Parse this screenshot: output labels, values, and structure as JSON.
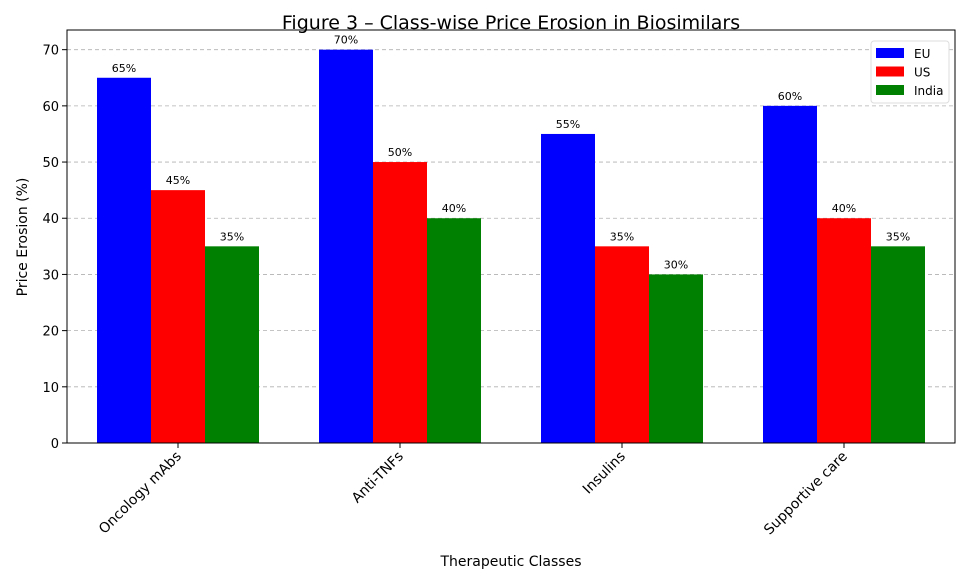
{
  "chart_data": {
    "type": "bar",
    "title": "Figure 3 – Class-wise Price Erosion in Biosimilars",
    "xlabel": "Therapeutic Classes",
    "ylabel": "Price Erosion (%)",
    "categories": [
      "Oncology mAbs",
      "Anti-TNFs",
      "Insulins",
      "Supportive care"
    ],
    "series": [
      {
        "name": "EU",
        "color": "#0000ff",
        "values": [
          65,
          70,
          55,
          60
        ],
        "labels": [
          "65%",
          "70%",
          "55%",
          "60%"
        ]
      },
      {
        "name": "US",
        "color": "#ff0000",
        "values": [
          45,
          50,
          35,
          40
        ],
        "labels": [
          "45%",
          "50%",
          "35%",
          "40%"
        ]
      },
      {
        "name": "India",
        "color": "#008000",
        "values": [
          35,
          40,
          30,
          35
        ],
        "labels": [
          "35%",
          "40%",
          "30%",
          "35%"
        ]
      }
    ],
    "ylim": [
      0,
      73.5
    ],
    "yticks": [
      0,
      10,
      20,
      30,
      40,
      50,
      60,
      70
    ],
    "grid": "y-dashed",
    "legend": "top-right"
  }
}
